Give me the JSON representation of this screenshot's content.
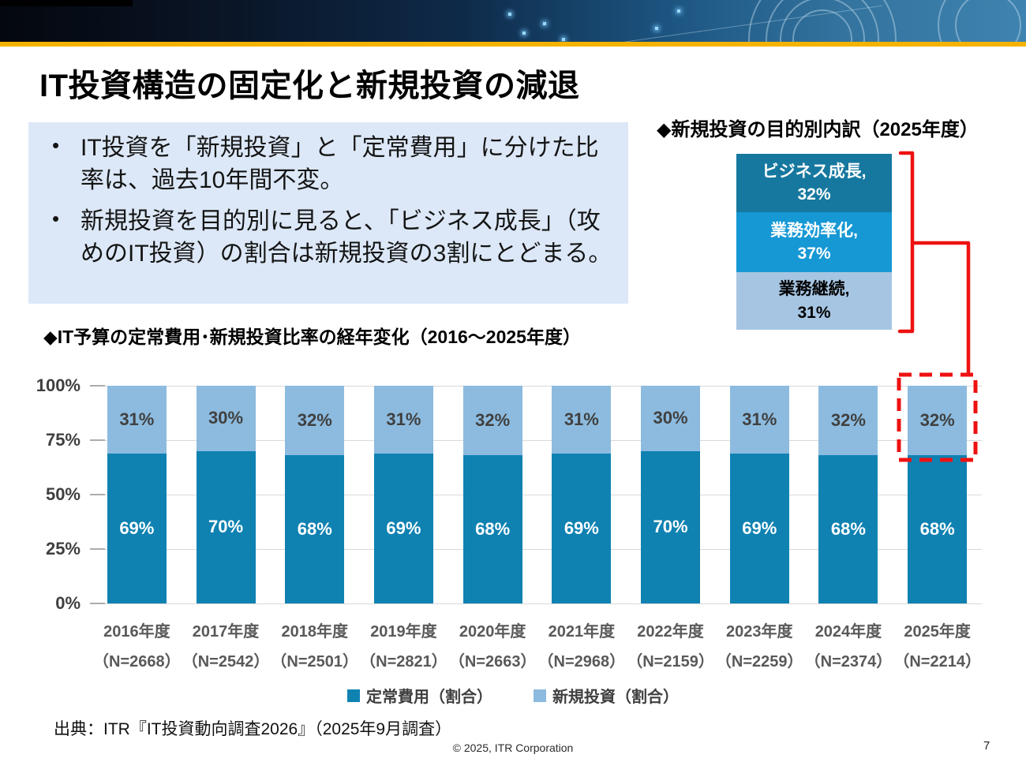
{
  "slide": {
    "title": "IT投資構造の固定化と新規投資の減退",
    "page_number": "7",
    "copyright": "© 2025, ITR Corporation",
    "source": "出典：ITR『IT投資動向調査2026』（2025年9月調査）",
    "accent_gold": "#F5B301",
    "annotation_red": "#EE1111"
  },
  "summary_box": {
    "bullets": [
      "IT投資を「新規投資」と「定常費用」に分けた比率は、過去10年間不変。",
      "新規投資を目的別に見ると、「ビジネス成長」（攻めのIT投資）の割合は新規投資の3割にとどまる。"
    ],
    "background": "#DCE8F7"
  },
  "breakdown_panel": {
    "title": "◆新規投資の目的別内訳（2025年度）",
    "segments": [
      {
        "label": "ビジネス成長,",
        "value_label": "32%",
        "pct": 32,
        "color": "#16789F",
        "text_color": "#FFFFFF"
      },
      {
        "label": "業務効率化,",
        "value_label": "37%",
        "pct": 37,
        "color": "#1598D4",
        "text_color": "#FFFFFF"
      },
      {
        "label": "業務継続,",
        "value_label": "31%",
        "pct": 31,
        "color": "#A6C5E3",
        "text_color": "#000000"
      }
    ]
  },
  "chart": {
    "title": "◆IT予算の定常費用･新規投資比率の経年変化（2016～2025年度）",
    "legend": [
      {
        "label": "定常費用（割合）",
        "color": "#0F82B2"
      },
      {
        "label": "新規投資（割合）",
        "color": "#8CBBDF"
      }
    ]
  },
  "chart_data": {
    "type": "bar",
    "stacked": true,
    "title": "IT予算の定常費用･新規投資比率の経年変化（2016～2025年度）",
    "categories": [
      "2016年度",
      "2017年度",
      "2018年度",
      "2019年度",
      "2020年度",
      "2021年度",
      "2022年度",
      "2023年度",
      "2024年度",
      "2025年度"
    ],
    "category_sublabels": [
      "（N=2668）",
      "（N=2542）",
      "（N=2501）",
      "（N=2821）",
      "（N=2663）",
      "（N=2968）",
      "（N=2159）",
      "（N=2259）",
      "（N=2374）",
      "（N=2214）"
    ],
    "series": [
      {
        "name": "定常費用（割合）",
        "color": "#0F82B2",
        "label_color": "#FFFFFF",
        "values": [
          69,
          70,
          68,
          69,
          68,
          69,
          70,
          69,
          68,
          68
        ]
      },
      {
        "name": "新規投資（割合）",
        "color": "#8CBBDF",
        "label_color": "#404040",
        "values": [
          31,
          30,
          32,
          31,
          32,
          31,
          30,
          31,
          32,
          32
        ]
      }
    ],
    "y_ticks": [
      {
        "label": "0%",
        "value": 0
      },
      {
        "label": "25%",
        "value": 25
      },
      {
        "label": "50%",
        "value": 50
      },
      {
        "label": "75%",
        "value": 75
      },
      {
        "label": "100%",
        "value": 100
      }
    ],
    "ylim": [
      0,
      100
    ],
    "grid": true,
    "legend_position": "bottom",
    "highlight": {
      "category": "2025年度",
      "series": "新規投資（割合）",
      "value": 32,
      "style": "red dashed box linked to breakdown panel"
    }
  }
}
